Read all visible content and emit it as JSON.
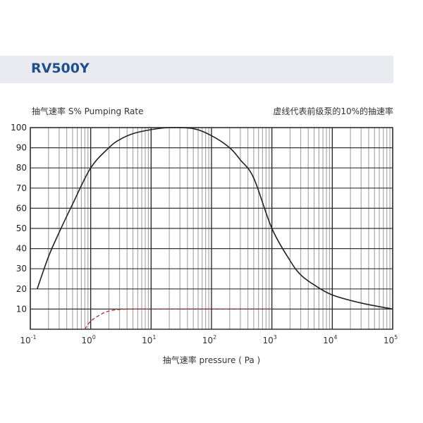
{
  "header": {
    "title": "RV500Y"
  },
  "chart_data": {
    "type": "line",
    "ylabel": "抽气速率 S%  Pumping Rate",
    "annotation": "虚线代表前级泵的10%的抽速率",
    "xlabel": "抽气速率 pressure ( Pa )",
    "xscale": "log",
    "xlim": [
      0.1,
      100000
    ],
    "ylim": [
      0,
      100
    ],
    "x_ticks": [
      {
        "base": "10",
        "exp": "-1"
      },
      {
        "base": "10",
        "exp": "0"
      },
      {
        "base": "10",
        "exp": "1"
      },
      {
        "base": "10",
        "exp": "2"
      },
      {
        "base": "10",
        "exp": "3"
      },
      {
        "base": "10",
        "exp": "4"
      },
      {
        "base": "10",
        "exp": "5"
      }
    ],
    "y_ticks": [
      10,
      20,
      30,
      40,
      50,
      60,
      70,
      80,
      90,
      100
    ],
    "grid": true,
    "series": [
      {
        "style": "solid",
        "color": "#222222",
        "x": [
          0.13,
          0.2,
          0.3,
          0.5,
          1,
          2,
          3,
          5,
          10,
          20,
          50,
          100,
          200,
          300,
          500,
          1000,
          2000,
          3000,
          5000,
          10000,
          30000,
          100000
        ],
        "y": [
          20,
          36,
          48,
          62,
          80,
          90,
          94,
          97,
          99,
          100,
          99.5,
          96,
          90,
          84,
          75,
          50,
          34,
          27,
          22,
          17,
          13,
          10
        ]
      },
      {
        "style": "dashed",
        "color": "#b03030",
        "x": [
          0.8,
          1,
          1.5,
          2,
          3,
          5,
          10,
          100,
          1000
        ],
        "y": [
          0,
          4,
          7.5,
          9,
          9.8,
          10,
          10,
          10,
          10
        ]
      }
    ]
  }
}
